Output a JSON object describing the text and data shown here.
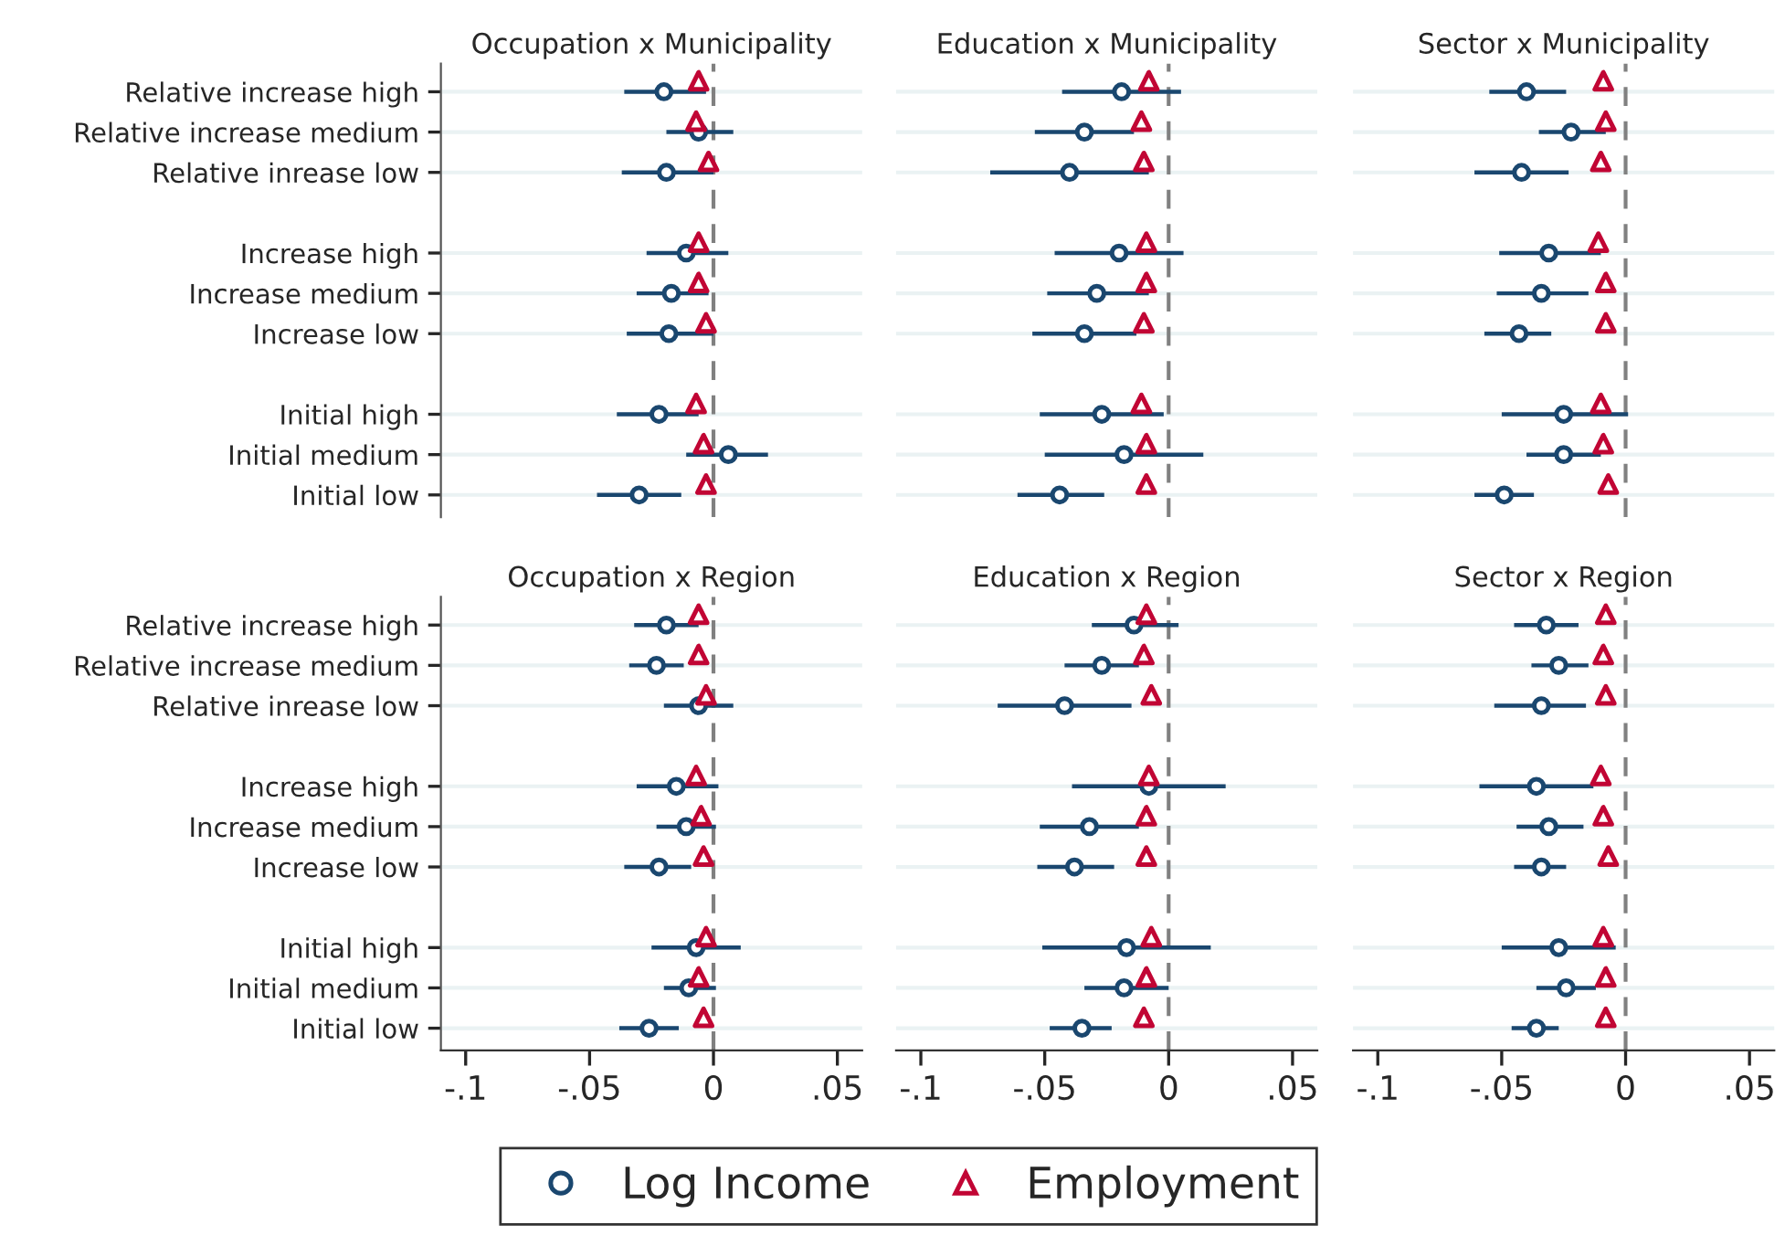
{
  "chart_data": [
    {
      "type": "scatter",
      "title": "Occupation x Municipality",
      "orientation": "horizontal",
      "categories": [
        "Relative increase high",
        "Relative increase medium",
        "Relative inrease low",
        null,
        "Increase high",
        "Increase medium",
        "Increase low",
        null,
        "Initial high",
        "Initial medium",
        "Initial low"
      ],
      "xlim": [
        -0.11,
        0.06
      ],
      "tick_labels": "y",
      "grid": "y",
      "legend": "bottom",
      "ref_lines": [
        {
          "axis": "x",
          "value": 0,
          "color": "#808080",
          "line_style": "dashed"
        }
      ],
      "series": [
        {
          "name": "Log Income",
          "color": "#1a476f",
          "marker": "circle",
          "values": [
            -0.02,
            -0.006,
            -0.019,
            null,
            -0.011,
            -0.017,
            -0.018,
            null,
            -0.022,
            0.006,
            -0.03
          ],
          "errors": [
            [
              -0.036,
              -0.003
            ],
            [
              -0.019,
              0.008
            ],
            [
              -0.037,
              0.0
            ],
            null,
            [
              -0.027,
              0.006
            ],
            [
              -0.031,
              -0.002
            ],
            [
              -0.035,
              0.0
            ],
            null,
            [
              -0.039,
              -0.006
            ],
            [
              -0.011,
              0.022
            ],
            [
              -0.047,
              -0.013
            ]
          ]
        },
        {
          "name": "Employment",
          "color": "#c10534",
          "marker": "triangle",
          "values": [
            -0.006,
            -0.007,
            -0.002,
            null,
            -0.006,
            -0.006,
            -0.003,
            null,
            -0.007,
            -0.004,
            -0.003
          ]
        }
      ]
    },
    {
      "type": "scatter",
      "title": "Education x Municipality",
      "orientation": "horizontal",
      "categories": [
        null,
        null,
        null,
        null,
        null,
        null,
        null,
        null,
        null,
        null,
        null
      ],
      "xlim": [
        -0.11,
        0.06
      ],
      "tick_labels": false,
      "grid": "y",
      "ref_lines": [
        {
          "axis": "x",
          "value": 0,
          "color": "#808080",
          "line_style": "dashed"
        }
      ],
      "series": [
        {
          "color": "#1a476f",
          "marker": "circle",
          "values": [
            -0.019,
            -0.034,
            -0.04,
            null,
            -0.02,
            -0.029,
            -0.034,
            null,
            -0.027,
            -0.018,
            -0.044
          ],
          "errors": [
            [
              -0.043,
              0.005
            ],
            [
              -0.054,
              -0.014
            ],
            [
              -0.072,
              -0.008
            ],
            null,
            [
              -0.046,
              0.006
            ],
            [
              -0.049,
              -0.008
            ],
            [
              -0.055,
              -0.013
            ],
            null,
            [
              -0.052,
              -0.002
            ],
            [
              -0.05,
              0.014
            ],
            [
              -0.061,
              -0.026
            ]
          ]
        },
        {
          "color": "#c10534",
          "marker": "triangle",
          "values": [
            -0.008,
            -0.011,
            -0.01,
            null,
            -0.009,
            -0.009,
            -0.01,
            null,
            -0.011,
            -0.009,
            -0.009
          ]
        }
      ]
    },
    {
      "type": "scatter",
      "title": "Sector x Municipality",
      "orientation": "horizontal",
      "categories": [
        null,
        null,
        null,
        null,
        null,
        null,
        null,
        null,
        null,
        null,
        null
      ],
      "xlim": [
        -0.11,
        0.06
      ],
      "tick_labels": false,
      "grid": "y",
      "ref_lines": [
        {
          "axis": "x",
          "value": 0,
          "color": "#808080",
          "line_style": "dashed"
        }
      ],
      "series": [
        {
          "color": "#1a476f",
          "marker": "circle",
          "values": [
            -0.04,
            -0.022,
            -0.042,
            null,
            -0.031,
            -0.034,
            -0.043,
            null,
            -0.025,
            -0.025,
            -0.049
          ],
          "errors": [
            [
              -0.055,
              -0.024
            ],
            [
              -0.035,
              -0.008
            ],
            [
              -0.061,
              -0.023
            ],
            null,
            [
              -0.051,
              -0.01
            ],
            [
              -0.052,
              -0.015
            ],
            [
              -0.057,
              -0.03
            ],
            null,
            [
              -0.05,
              0.001
            ],
            [
              -0.04,
              -0.01
            ],
            [
              -0.061,
              -0.037
            ]
          ]
        },
        {
          "color": "#c10534",
          "marker": "triangle",
          "values": [
            -0.009,
            -0.008,
            -0.01,
            null,
            -0.011,
            -0.008,
            -0.008,
            null,
            -0.01,
            -0.009,
            -0.007
          ]
        }
      ]
    },
    {
      "type": "scatter",
      "title": "Occupation x Region",
      "orientation": "horizontal",
      "categories": [
        "Relative increase high",
        "Relative increase medium",
        "Relative inrease low",
        null,
        "Increase high",
        "Increase medium",
        "Increase low",
        null,
        "Initial high",
        "Initial medium",
        "Initial low"
      ],
      "xlim": [
        -0.11,
        0.06
      ],
      "xticks": [
        {
          "value": -0.1,
          "label": "-.1"
        },
        {
          "value": -0.05,
          "label": "-.05"
        },
        0,
        {
          "value": 0.05,
          "label": ".05"
        }
      ],
      "grid": "y",
      "ref_lines": [
        {
          "axis": "x",
          "value": 0,
          "color": "#808080",
          "line_style": "dashed"
        }
      ],
      "series": [
        {
          "color": "#1a476f",
          "marker": "circle",
          "values": [
            -0.019,
            -0.023,
            -0.006,
            null,
            -0.015,
            -0.011,
            -0.022,
            null,
            -0.007,
            -0.01,
            -0.026
          ],
          "errors": [
            [
              -0.032,
              -0.006
            ],
            [
              -0.034,
              -0.012
            ],
            [
              -0.02,
              0.008
            ],
            null,
            [
              -0.031,
              0.002
            ],
            [
              -0.023,
              0.001
            ],
            [
              -0.036,
              -0.009
            ],
            null,
            [
              -0.025,
              0.011
            ],
            [
              -0.02,
              0.001
            ],
            [
              -0.038,
              -0.014
            ]
          ]
        },
        {
          "color": "#c10534",
          "marker": "triangle",
          "values": [
            -0.006,
            -0.006,
            -0.003,
            null,
            -0.007,
            -0.005,
            -0.004,
            null,
            -0.003,
            -0.006,
            -0.004
          ]
        }
      ]
    },
    {
      "type": "scatter",
      "title": "Education x Region",
      "orientation": "horizontal",
      "categories": [
        null,
        null,
        null,
        null,
        null,
        null,
        null,
        null,
        null,
        null,
        null
      ],
      "xlim": [
        -0.11,
        0.06
      ],
      "xticks": [
        {
          "value": -0.1,
          "label": "-.1"
        },
        {
          "value": -0.05,
          "label": "-.05"
        },
        0,
        {
          "value": 0.05,
          "label": ".05"
        }
      ],
      "tick_labels": "x",
      "grid": "y",
      "ref_lines": [
        {
          "axis": "x",
          "value": 0,
          "color": "#808080",
          "line_style": "dashed"
        }
      ],
      "series": [
        {
          "color": "#1a476f",
          "marker": "circle",
          "values": [
            -0.014,
            -0.027,
            -0.042,
            null,
            -0.008,
            -0.032,
            -0.038,
            null,
            -0.017,
            -0.018,
            -0.035
          ],
          "errors": [
            [
              -0.031,
              0.004
            ],
            [
              -0.042,
              -0.012
            ],
            [
              -0.069,
              -0.015
            ],
            null,
            [
              -0.039,
              0.023
            ],
            [
              -0.052,
              -0.012
            ],
            [
              -0.053,
              -0.022
            ],
            null,
            [
              -0.051,
              0.017
            ],
            [
              -0.034,
              0.0
            ],
            [
              -0.048,
              -0.023
            ]
          ]
        },
        {
          "color": "#c10534",
          "marker": "triangle",
          "values": [
            -0.009,
            -0.01,
            -0.007,
            null,
            -0.008,
            -0.009,
            -0.009,
            null,
            -0.007,
            -0.009,
            -0.01
          ]
        }
      ]
    },
    {
      "type": "scatter",
      "title": "Sector x Region",
      "orientation": "horizontal",
      "categories": [
        null,
        null,
        null,
        null,
        null,
        null,
        null,
        null,
        null,
        null,
        null
      ],
      "xlim": [
        -0.11,
        0.06
      ],
      "xticks": [
        {
          "value": -0.1,
          "label": "-.1"
        },
        {
          "value": -0.05,
          "label": "-.05"
        },
        0,
        {
          "value": 0.05,
          "label": ".05"
        }
      ],
      "tick_labels": "x",
      "grid": "y",
      "ref_lines": [
        {
          "axis": "x",
          "value": 0,
          "color": "#808080",
          "line_style": "dashed"
        }
      ],
      "series": [
        {
          "color": "#1a476f",
          "marker": "circle",
          "values": [
            -0.032,
            -0.027,
            -0.034,
            null,
            -0.036,
            -0.031,
            -0.034,
            null,
            -0.027,
            -0.024,
            -0.036
          ],
          "errors": [
            [
              -0.045,
              -0.019
            ],
            [
              -0.038,
              -0.015
            ],
            [
              -0.053,
              -0.016
            ],
            null,
            [
              -0.059,
              -0.013
            ],
            [
              -0.044,
              -0.017
            ],
            [
              -0.045,
              -0.024
            ],
            null,
            [
              -0.05,
              -0.004
            ],
            [
              -0.036,
              -0.012
            ],
            [
              -0.046,
              -0.027
            ]
          ]
        },
        {
          "color": "#c10534",
          "marker": "triangle",
          "values": [
            -0.008,
            -0.009,
            -0.008,
            null,
            -0.01,
            -0.009,
            -0.007,
            null,
            -0.009,
            -0.008,
            -0.008
          ]
        }
      ]
    }
  ]
}
